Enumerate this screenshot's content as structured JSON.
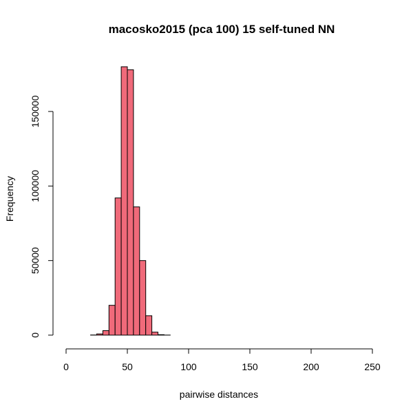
{
  "chart_data": {
    "type": "bar",
    "title": "macosko2015 (pca 100) 15 self-tuned NN",
    "xlabel": "pairwise distances",
    "ylabel": "Frequency",
    "xlim": [
      0,
      250
    ],
    "ylim": [
      0,
      180000
    ],
    "x_ticks": [
      0,
      50,
      100,
      150,
      200,
      250
    ],
    "y_ticks": [
      0,
      50000,
      100000,
      150000
    ],
    "x_tick_labels": [
      "0",
      "50",
      "100",
      "150",
      "200",
      "250"
    ],
    "y_tick_labels": [
      "0",
      "50000",
      "100000",
      "150000"
    ],
    "bin_width": 5,
    "bins": [
      {
        "start": 0,
        "end": 5,
        "count": 0
      },
      {
        "start": 5,
        "end": 10,
        "count": 0
      },
      {
        "start": 10,
        "end": 15,
        "count": 0
      },
      {
        "start": 15,
        "end": 20,
        "count": 0
      },
      {
        "start": 20,
        "end": 25,
        "count": 100
      },
      {
        "start": 25,
        "end": 30,
        "count": 800
      },
      {
        "start": 30,
        "end": 35,
        "count": 3000
      },
      {
        "start": 35,
        "end": 40,
        "count": 20000
      },
      {
        "start": 40,
        "end": 45,
        "count": 92000
      },
      {
        "start": 45,
        "end": 50,
        "count": 180000
      },
      {
        "start": 50,
        "end": 55,
        "count": 178000
      },
      {
        "start": 55,
        "end": 60,
        "count": 86000
      },
      {
        "start": 60,
        "end": 65,
        "count": 50000
      },
      {
        "start": 65,
        "end": 70,
        "count": 13000
      },
      {
        "start": 70,
        "end": 75,
        "count": 2000
      },
      {
        "start": 75,
        "end": 80,
        "count": 300
      },
      {
        "start": 80,
        "end": 85,
        "count": 50
      },
      {
        "start": 85,
        "end": 250,
        "count": 0
      }
    ],
    "bar_color": "#F06A7A",
    "bar_border_color": "#000000",
    "grid": false,
    "legend": "none"
  }
}
